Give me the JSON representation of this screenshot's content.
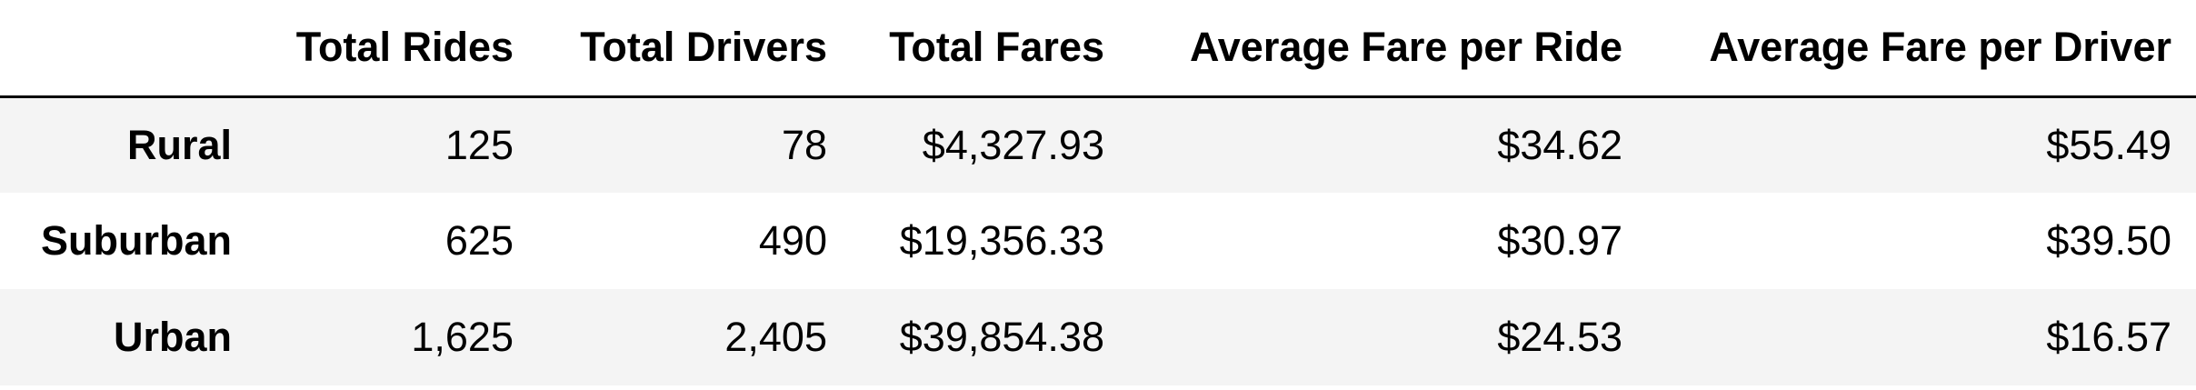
{
  "table": {
    "columns": [
      "",
      "Total Rides",
      "Total Drivers",
      "Total Fares",
      "Average Fare per Ride",
      "Average Fare per Driver"
    ],
    "rows": [
      {
        "label": "Rural",
        "total_rides": "125",
        "total_drivers": "78",
        "total_fares": "$4,327.93",
        "avg_fare_per_ride": "$34.62",
        "avg_fare_per_driver": "$55.49"
      },
      {
        "label": "Suburban",
        "total_rides": "625",
        "total_drivers": "490",
        "total_fares": "$19,356.33",
        "avg_fare_per_ride": "$30.97",
        "avg_fare_per_driver": "$39.50"
      },
      {
        "label": "Urban",
        "total_rides": "1,625",
        "total_drivers": "2,405",
        "total_fares": "$39,854.38",
        "avg_fare_per_ride": "$24.53",
        "avg_fare_per_driver": "$16.57"
      }
    ]
  },
  "colors": {
    "odd_row_background": "#f4f4f4",
    "even_row_background": "#ffffff",
    "header_rule": "#000000",
    "text": "#000000"
  }
}
